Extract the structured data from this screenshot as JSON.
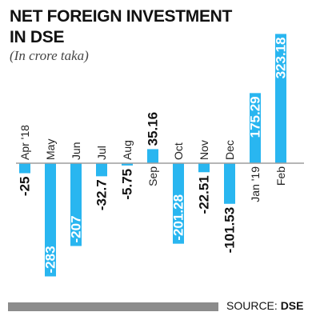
{
  "header": {
    "title_line1": "NET FOREIGN INVESTMENT",
    "title_line2": "IN DSE",
    "subtitle": "(In crore taka)"
  },
  "footer": {
    "source_prefix": "SOURCE:",
    "source_name": "DSE"
  },
  "colors": {
    "bar": "#29b6f0",
    "axis": "#9e9e9e",
    "footer_bar": "#8c8c8c"
  },
  "chart_data": {
    "type": "bar",
    "title": "NET FOREIGN INVESTMENT IN DSE",
    "subtitle": "(In crore taka)",
    "categories": [
      "Apr '18",
      "May",
      "Jun",
      "Jul",
      "Aug",
      "Sep",
      "Oct",
      "Nov",
      "Dec",
      "Jan '19",
      "Feb"
    ],
    "values": [
      -25,
      -283,
      -207,
      -32.7,
      -5.75,
      35.16,
      -201.28,
      -22.51,
      -101.53,
      175.29,
      323.18
    ],
    "data_labels": [
      "-25",
      "-283",
      "-207",
      "-32.7",
      "-5.75",
      "35.16",
      "-201.28",
      "-22.51",
      "-101.53",
      "175.29",
      "323.18"
    ],
    "grid": false,
    "legend": "none"
  }
}
